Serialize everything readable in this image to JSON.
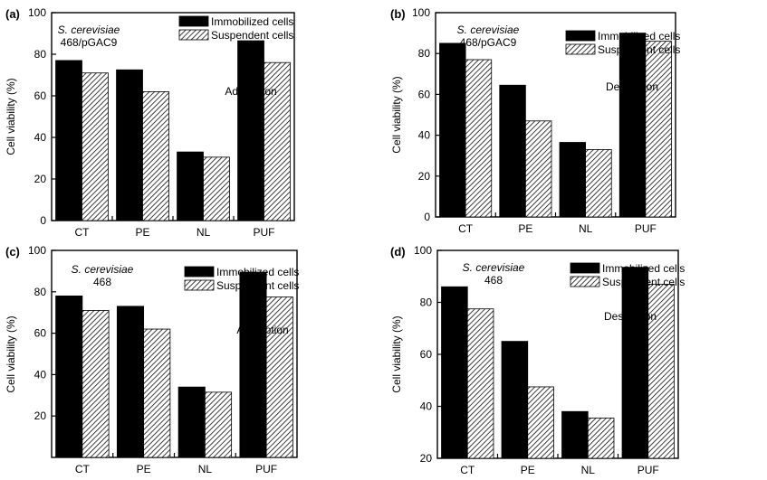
{
  "chart_data": [
    {
      "type": "bar",
      "panel_label": "(a)",
      "organism": "S. cerevisiae",
      "strain": "468/pGAC9",
      "annotation": "Adsorption",
      "ylabel": "Cell viability (%)",
      "xlabel": "",
      "ylim": [
        0,
        100
      ],
      "yticks": [
        0,
        20,
        40,
        60,
        80,
        100
      ],
      "grid": false,
      "legend_position": "top-center",
      "categories": [
        "CT",
        "PE",
        "NL",
        "PUF"
      ],
      "series": [
        {
          "name": "Immobilized cells",
          "pattern": "solid",
          "values": [
            77,
            72.5,
            33,
            86.5
          ]
        },
        {
          "name": "Suspendent cells",
          "pattern": "hatched",
          "values": [
            71,
            62,
            30.5,
            76
          ]
        }
      ]
    },
    {
      "type": "bar",
      "panel_label": "(b)",
      "organism": "S. cerevisiae",
      "strain": "468/pGAC9",
      "annotation": "Desorption",
      "ylabel": "Cell viability (%)",
      "xlabel": "",
      "ylim": [
        0,
        100
      ],
      "yticks": [
        0,
        20,
        40,
        60,
        80,
        100
      ],
      "grid": false,
      "legend_position": "top-center",
      "categories": [
        "CT",
        "PE",
        "NL",
        "PUF"
      ],
      "series": [
        {
          "name": "Immobilized cells",
          "pattern": "solid",
          "values": [
            85,
            64.5,
            36.5,
            90
          ]
        },
        {
          "name": "Suspendent cells",
          "pattern": "hatched",
          "values": [
            77,
            47,
            33,
            86
          ]
        }
      ]
    },
    {
      "type": "bar",
      "panel_label": "(c)",
      "organism": "S. cerevisiae",
      "strain": "468",
      "annotation": "Adsorption",
      "ylabel": "Cell viability (%)",
      "xlabel": "",
      "ylim": [
        0,
        100
      ],
      "yticks": [
        20,
        40,
        60,
        80,
        100
      ],
      "grid": false,
      "legend_position": "top-center",
      "categories": [
        "CT",
        "PE",
        "NL",
        "PUF"
      ],
      "series": [
        {
          "name": "Immobilized cells",
          "pattern": "solid",
          "values": [
            78,
            73,
            34,
            89.5
          ]
        },
        {
          "name": "Suspendent cells",
          "pattern": "hatched",
          "values": [
            71,
            62,
            31.5,
            77.5
          ]
        }
      ]
    },
    {
      "type": "bar",
      "panel_label": "(d)",
      "organism": "S. cerevisiae",
      "strain": "468",
      "annotation": "Desorption",
      "ylabel": "Cell viability (%)",
      "xlabel": "",
      "ylim": [
        20,
        100
      ],
      "yticks": [
        20,
        40,
        60,
        80,
        100
      ],
      "grid": false,
      "legend_position": "top-center",
      "categories": [
        "CT",
        "PE",
        "NL",
        "PUF"
      ],
      "series": [
        {
          "name": "Immobilized cells",
          "pattern": "solid",
          "values": [
            86,
            65,
            38,
            93.5
          ]
        },
        {
          "name": "Suspendent cells",
          "pattern": "hatched",
          "values": [
            77.5,
            47.5,
            35.5,
            87
          ]
        }
      ]
    }
  ]
}
